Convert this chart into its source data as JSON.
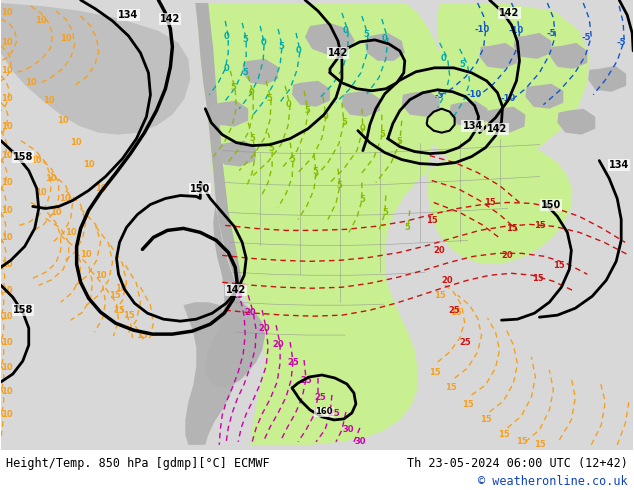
{
  "title_left": "Height/Temp. 850 hPa [gdmp][°C] ECMWF",
  "title_right": "Th 23-05-2024 06:00 UTC (12+42)",
  "copyright": "© weatheronline.co.uk",
  "figsize": [
    6.34,
    4.9
  ],
  "dpi": 100,
  "bg_color": "#e0e0e0",
  "land_gray": "#b8b8b8",
  "ocean_gray": "#d4d4d4",
  "green_warm": "#b8ee80",
  "green_light": "#ccf599"
}
